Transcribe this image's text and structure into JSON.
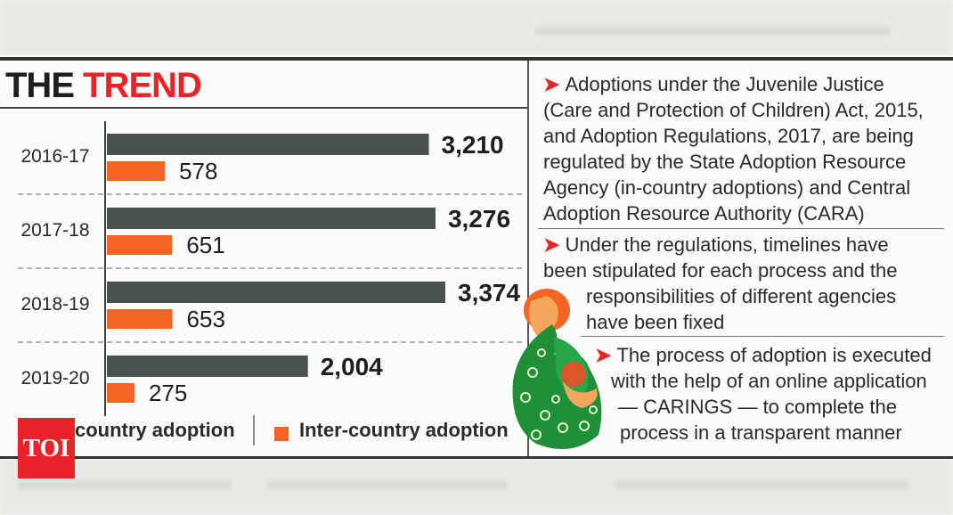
{
  "header": {
    "title_part1": "THE",
    "title_part2": "TREND"
  },
  "colors": {
    "accent": "#e8242a",
    "in_country": "#4a5250",
    "inter_country": "#f26522"
  },
  "chart_data": {
    "type": "bar",
    "orientation": "horizontal",
    "categories": [
      "2016-17",
      "2017-18",
      "2018-19",
      "2019-20"
    ],
    "series": [
      {
        "name": "In-country adoption",
        "values": [
          3210,
          3276,
          3374,
          2004
        ],
        "labels": [
          "3,210",
          "3,276",
          "3,374",
          "2,004"
        ]
      },
      {
        "name": "Inter-country adoption",
        "values": [
          578,
          651,
          653,
          275
        ],
        "labels": [
          "578",
          "651",
          "653",
          "275"
        ]
      }
    ],
    "legend": {
      "in_country_visible": "country adoption",
      "inter_country": "Inter-country adoption"
    },
    "legend_placement": "bottom"
  },
  "bullets": [
    {
      "lines": [
        "Adoptions under the Juvenile Justice",
        "(Care and Protection of Children) Act, 2015,",
        "and Adoption Regulations, 2017, are being",
        "regulated by the State Adoption Resource",
        "Agency (in-country adoptions) and Central",
        "Adoption Resource Authority (CARA)"
      ]
    },
    {
      "lines": [
        "Under the regulations, timelines have",
        "been stipulated for each process and the",
        "responsibilities of different agencies",
        "have been fixed"
      ]
    },
    {
      "lines": [
        "The process of adoption is executed",
        "with the help of an online application",
        "— CARINGS —  to complete the",
        "process in a transparent manner"
      ]
    }
  ],
  "logo": {
    "text": "TOI"
  },
  "illustration": {
    "icon": "mother-and-child-icon"
  }
}
